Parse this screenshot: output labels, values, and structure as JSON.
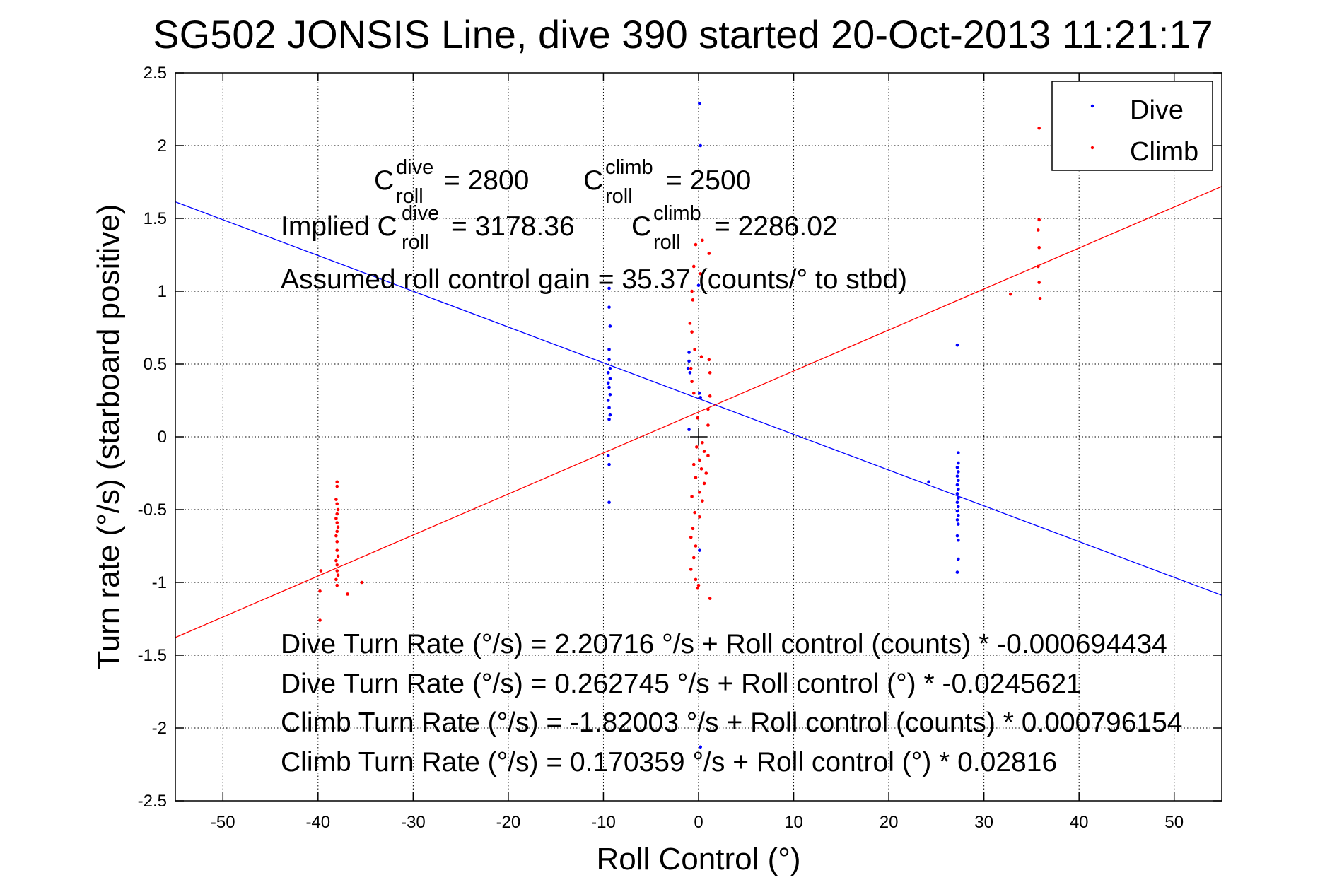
{
  "chart_data": {
    "type": "scatter",
    "title": "SG502 JONSIS Line, dive 390 started 20-Oct-2013 11:21:17",
    "xlabel": "Roll Control (°)",
    "ylabel": "Turn rate (°/s) (starboard positive)",
    "xlim": [
      -55,
      55
    ],
    "ylim": [
      -2.5,
      2.5
    ],
    "x_ticks": [
      "-50",
      "-40",
      "-30",
      "-20",
      "-10",
      "0",
      "10",
      "20",
      "30",
      "40",
      "50"
    ],
    "y_ticks": [
      "2.5",
      "2",
      "1.5",
      "1",
      "0.5",
      "0",
      "-0.5",
      "-1",
      "-1.5",
      "-2",
      "-2.5"
    ],
    "grid": true,
    "legend_position": "top-right",
    "legend": [
      {
        "label": "Dive",
        "color": "#0000ff"
      },
      {
        "label": "Climb",
        "color": "#ff0000"
      }
    ],
    "series": [
      {
        "name": "Dive",
        "color": "#0000ff",
        "points": [
          [
            -9.4,
            1.02
          ],
          [
            -9.4,
            0.89
          ],
          [
            -9.3,
            0.76
          ],
          [
            -9.4,
            0.6
          ],
          [
            -9.4,
            0.53
          ],
          [
            -9.3,
            0.47
          ],
          [
            -9.5,
            0.44
          ],
          [
            -9.3,
            0.4
          ],
          [
            -9.5,
            0.37
          ],
          [
            -9.4,
            0.34
          ],
          [
            -9.3,
            0.29
          ],
          [
            -9.5,
            0.25
          ],
          [
            -9.4,
            0.2
          ],
          [
            -9.3,
            0.15
          ],
          [
            -9.4,
            0.12
          ],
          [
            -9.5,
            -0.13
          ],
          [
            -9.4,
            -0.19
          ],
          [
            -9.4,
            -0.45
          ],
          [
            0.1,
            2.29
          ],
          [
            0.2,
            2.0
          ],
          [
            -1.0,
            0.58
          ],
          [
            -1.0,
            0.52
          ],
          [
            -0.9,
            0.44
          ],
          [
            -1.1,
            0.47
          ],
          [
            0.1,
            0.3
          ],
          [
            0.2,
            0.27
          ],
          [
            -1.0,
            0.05
          ],
          [
            0.1,
            -0.78
          ],
          [
            0.2,
            -2.13
          ],
          [
            0.0,
            1.04
          ],
          [
            27.2,
            0.63
          ],
          [
            24.2,
            -0.31
          ],
          [
            27.3,
            -0.11
          ],
          [
            27.3,
            -0.18
          ],
          [
            27.2,
            -0.21
          ],
          [
            27.3,
            -0.24
          ],
          [
            27.2,
            -0.27
          ],
          [
            27.3,
            -0.3
          ],
          [
            27.2,
            -0.33
          ],
          [
            27.3,
            -0.36
          ],
          [
            27.2,
            -0.39
          ],
          [
            27.3,
            -0.42
          ],
          [
            27.2,
            -0.45
          ],
          [
            27.3,
            -0.48
          ],
          [
            27.2,
            -0.51
          ],
          [
            27.3,
            -0.54
          ],
          [
            27.2,
            -0.57
          ],
          [
            27.3,
            -0.6
          ],
          [
            27.2,
            -0.68
          ],
          [
            27.3,
            -0.71
          ],
          [
            27.3,
            -0.84
          ],
          [
            27.2,
            -0.93
          ]
        ]
      },
      {
        "name": "Climb",
        "color": "#ff0000",
        "points": [
          [
            -38.0,
            -0.31
          ],
          [
            -38.0,
            -0.34
          ],
          [
            -38.1,
            -0.43
          ],
          [
            -38.0,
            -0.46
          ],
          [
            -37.9,
            -0.5
          ],
          [
            -38.0,
            -0.53
          ],
          [
            -38.1,
            -0.56
          ],
          [
            -38.0,
            -0.59
          ],
          [
            -37.9,
            -0.62
          ],
          [
            -38.0,
            -0.65
          ],
          [
            -38.1,
            -0.68
          ],
          [
            -38.0,
            -0.72
          ],
          [
            -38.0,
            -0.78
          ],
          [
            -37.9,
            -0.82
          ],
          [
            -38.1,
            -0.85
          ],
          [
            -38.0,
            -0.88
          ],
          [
            -38.0,
            -0.92
          ],
          [
            -37.9,
            -0.95
          ],
          [
            -38.1,
            -0.98
          ],
          [
            -38.0,
            -1.02
          ],
          [
            -39.7,
            -0.92
          ],
          [
            -39.8,
            -1.06
          ],
          [
            -39.8,
            -1.26
          ],
          [
            -36.9,
            -1.08
          ],
          [
            -35.4,
            -1.0
          ],
          [
            -0.3,
            1.32
          ],
          [
            0.4,
            1.35
          ],
          [
            1.1,
            1.26
          ],
          [
            -0.5,
            1.17
          ],
          [
            0.2,
            1.12
          ],
          [
            -0.7,
            1.0
          ],
          [
            -0.6,
            0.94
          ],
          [
            -0.9,
            0.78
          ],
          [
            -0.7,
            0.72
          ],
          [
            -0.4,
            0.6
          ],
          [
            0.3,
            0.55
          ],
          [
            1.1,
            0.53
          ],
          [
            1.2,
            0.44
          ],
          [
            -0.8,
            0.47
          ],
          [
            -0.7,
            0.38
          ],
          [
            -0.5,
            0.3
          ],
          [
            1.2,
            0.28
          ],
          [
            1.0,
            0.19
          ],
          [
            -0.1,
            0.13
          ],
          [
            1.0,
            0.08
          ],
          [
            0.4,
            -0.04
          ],
          [
            -0.2,
            -0.07
          ],
          [
            0.6,
            -0.1
          ],
          [
            1.0,
            -0.13
          ],
          [
            0.1,
            -0.16
          ],
          [
            -0.5,
            -0.19
          ],
          [
            0.3,
            -0.22
          ],
          [
            0.8,
            -0.25
          ],
          [
            -0.3,
            -0.28
          ],
          [
            0.6,
            -0.32
          ],
          [
            0.1,
            -0.38
          ],
          [
            -0.7,
            -0.41
          ],
          [
            0.4,
            -0.44
          ],
          [
            -0.4,
            -0.52
          ],
          [
            0.1,
            -0.55
          ],
          [
            -0.6,
            -0.63
          ],
          [
            -0.8,
            -0.69
          ],
          [
            -0.3,
            -0.75
          ],
          [
            -0.5,
            -0.83
          ],
          [
            -0.8,
            -0.91
          ],
          [
            -0.3,
            -0.98
          ],
          [
            0.0,
            -1.02
          ],
          [
            -0.1,
            -1.04
          ],
          [
            1.2,
            -1.11
          ],
          [
            35.8,
            2.12
          ],
          [
            35.8,
            1.49
          ],
          [
            35.7,
            1.42
          ],
          [
            35.8,
            1.3
          ],
          [
            35.7,
            1.17
          ],
          [
            35.8,
            1.06
          ],
          [
            35.9,
            0.95
          ],
          [
            32.8,
            0.98
          ]
        ]
      }
    ],
    "fit_lines": [
      {
        "series": "Dive",
        "color": "#0000ff",
        "intercept": 0.262745,
        "slope": -0.0245621
      },
      {
        "series": "Climb",
        "color": "#ff0000",
        "intercept": 0.170359,
        "slope": 0.02816
      }
    ],
    "annotations": {
      "c_roll_dive_label": "C",
      "c_roll_dive_sup": "dive",
      "c_roll_dive_sub": "roll",
      "c_roll_dive_value": "= 2800",
      "c_roll_climb_label": "C",
      "c_roll_climb_sup": "climb",
      "c_roll_climb_sub": "roll",
      "c_roll_climb_value": "= 2500",
      "implied_prefix": "Implied C",
      "implied_dive_sup": "dive",
      "implied_dive_sub": "roll",
      "implied_dive_value": "= 3178.36",
      "implied_climb_label": "C",
      "implied_climb_sup": "climb",
      "implied_climb_sub": "roll",
      "implied_climb_value": "= 2286.02",
      "gain": "Assumed roll control gain = 35.37 (counts/° to stbd)",
      "eq1": "Dive Turn Rate (°/s) = 2.20716 °/s + Roll control (counts) * -0.000694434",
      "eq2": "Dive Turn Rate (°/s) = 0.262745 °/s + Roll control (°) * -0.0245621",
      "eq3": "Climb Turn Rate (°/s) = -1.82003 °/s + Roll control (counts) * 0.000796154",
      "eq4": "Climb Turn Rate (°/s) = 0.170359 °/s + Roll control (°) * 0.02816"
    }
  }
}
